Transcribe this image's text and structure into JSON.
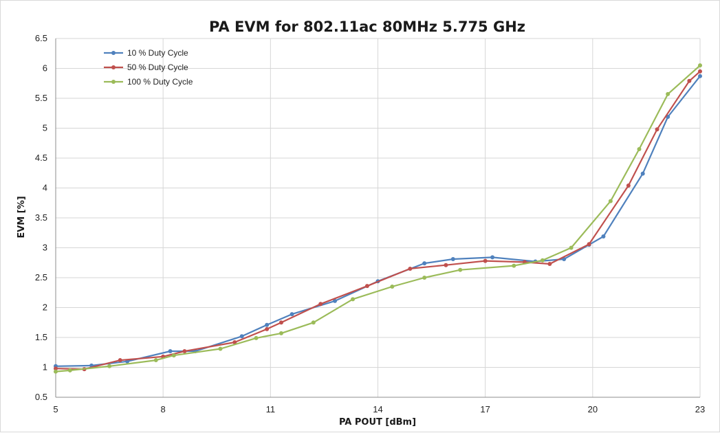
{
  "chart_data": {
    "type": "line",
    "title": "PA EVM for 802.11ac 80MHz 5.775 GHz",
    "xlabel": "PA POUT [dBm]",
    "ylabel": "EVM [%]",
    "xlim": [
      5,
      23
    ],
    "ylim": [
      0.5,
      6.5
    ],
    "xticks": [
      5,
      8,
      11,
      14,
      17,
      20,
      23
    ],
    "yticks": [
      0.5,
      1,
      1.5,
      2,
      2.5,
      3,
      3.5,
      4,
      4.5,
      5,
      5.5,
      6,
      6.5
    ],
    "ytick_labels": [
      "0.5",
      "1",
      "1.5",
      "2",
      "2.5",
      "3",
      "3.5",
      "4",
      "4.5",
      "5",
      "5.5",
      "6",
      "6.5"
    ],
    "grid": true,
    "legend_position": "top-left",
    "series": [
      {
        "name": "10 % Duty Cycle",
        "color": "#4f81bd",
        "x": [
          5.0,
          6.0,
          7.0,
          8.2,
          8.9,
          10.2,
          10.9,
          11.6,
          12.8,
          14.0,
          15.3,
          16.1,
          17.2,
          18.4,
          19.2,
          19.9,
          20.3,
          21.4,
          22.1,
          23.0
        ],
        "y": [
          1.02,
          1.03,
          1.1,
          1.27,
          1.27,
          1.52,
          1.71,
          1.89,
          2.11,
          2.44,
          2.74,
          2.81,
          2.84,
          2.77,
          2.81,
          3.05,
          3.19,
          4.24,
          5.19,
          5.87
        ]
      },
      {
        "name": "50 % Duty Cycle",
        "color": "#c0504d",
        "x": [
          5.0,
          5.8,
          6.8,
          8.0,
          8.6,
          10.0,
          10.9,
          11.3,
          12.4,
          13.7,
          14.9,
          15.9,
          17.0,
          18.1,
          18.8,
          19.9,
          21.0,
          21.8,
          22.7,
          23.0
        ],
        "y": [
          0.98,
          0.97,
          1.12,
          1.18,
          1.27,
          1.42,
          1.64,
          1.75,
          2.06,
          2.36,
          2.65,
          2.71,
          2.78,
          2.76,
          2.73,
          3.06,
          4.04,
          4.98,
          5.79,
          5.95
        ]
      },
      {
        "name": "100 % Duty Cycle",
        "color": "#9bbb59",
        "x": [
          5.0,
          5.4,
          6.5,
          7.8,
          8.3,
          9.6,
          10.6,
          11.3,
          12.2,
          13.3,
          14.4,
          15.3,
          16.3,
          17.8,
          18.6,
          19.4,
          20.5,
          21.3,
          22.1,
          23.0
        ],
        "y": [
          0.93,
          0.95,
          1.02,
          1.12,
          1.2,
          1.31,
          1.49,
          1.57,
          1.75,
          2.14,
          2.35,
          2.5,
          2.63,
          2.7,
          2.79,
          3.0,
          3.78,
          4.65,
          5.57,
          6.05
        ]
      }
    ]
  }
}
